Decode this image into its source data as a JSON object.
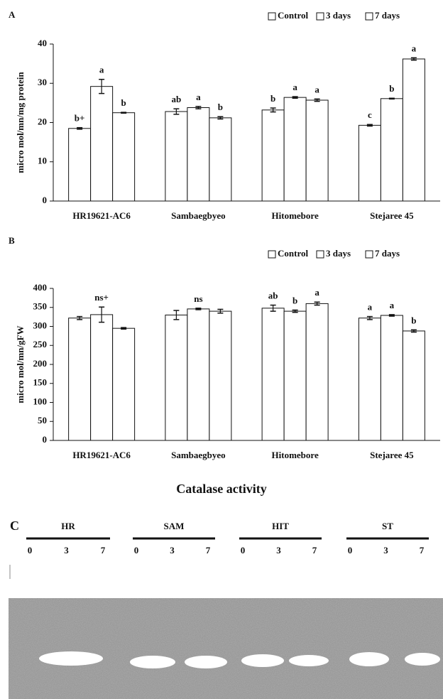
{
  "chart_data": [
    {
      "type": "bar",
      "panel": "A",
      "y_label": "micro mol/mn/mg protein",
      "categories": [
        "HR19621-AC6",
        "Sambaegbyeo",
        "Hitomebore",
        "Stejaree 45"
      ],
      "series": [
        {
          "name": "Control",
          "color": "#ffffff",
          "values": [
            18.5,
            22.8,
            23.2,
            19.3
          ],
          "errors": [
            0.2,
            0.7,
            0.5,
            0.2
          ],
          "letters": [
            "b+",
            "ab",
            "b",
            "c"
          ]
        },
        {
          "name": "3 days",
          "color": "#ffffff",
          "values": [
            29.2,
            23.8,
            26.4,
            26.1
          ],
          "errors": [
            1.8,
            0.3,
            0.2,
            0.1
          ],
          "letters": [
            "a",
            "a",
            "a",
            "b"
          ]
        },
        {
          "name": "7 days",
          "color": "#ffffff",
          "values": [
            22.5,
            21.2,
            25.7,
            36.2
          ],
          "errors": [
            0.1,
            0.3,
            0.3,
            0.3
          ],
          "letters": [
            "b",
            "b",
            "a",
            "a"
          ]
        }
      ],
      "ylim": [
        0,
        40
      ],
      "yticks": [
        0,
        10,
        20,
        30,
        40
      ],
      "legend": "top-right"
    },
    {
      "type": "bar",
      "panel": "B",
      "y_label": "micro mol/mn/gFW",
      "categories": [
        "HR19621-AC6",
        "Sambaegbyeo",
        "Hitomebore",
        "Stejaree 45"
      ],
      "group_letters": [
        "ns+",
        "ns",
        null,
        null
      ],
      "series": [
        {
          "name": "Control",
          "color": "#ffffff",
          "values": [
            322,
            330,
            348,
            322
          ],
          "errors": [
            4,
            12,
            8,
            4
          ],
          "letters": [
            null,
            null,
            "ab",
            "a"
          ]
        },
        {
          "name": "3 days",
          "color": "#ffffff",
          "values": [
            331,
            346,
            340,
            329
          ],
          "errors": [
            20,
            2,
            3,
            2
          ],
          "letters": [
            null,
            null,
            "b",
            "a"
          ]
        },
        {
          "name": "7 days",
          "color": "#ffffff",
          "values": [
            295,
            340,
            360,
            288
          ],
          "errors": [
            2,
            5,
            4,
            3
          ],
          "letters": [
            null,
            null,
            "a",
            "b"
          ]
        }
      ],
      "ylim": [
        0,
        400
      ],
      "yticks": [
        0,
        50,
        100,
        150,
        200,
        250,
        300,
        350,
        400
      ],
      "legend": "top-right"
    }
  ],
  "gel": {
    "title": "Catalase activity",
    "panel": "C",
    "lanes": [
      {
        "label": "HR",
        "times": [
          0,
          3,
          7
        ]
      },
      {
        "label": "SAM",
        "times": [
          0,
          3,
          7
        ]
      },
      {
        "label": "HIT",
        "times": [
          0,
          3,
          7
        ]
      },
      {
        "label": "ST",
        "times": [
          0,
          3,
          7
        ]
      }
    ]
  }
}
